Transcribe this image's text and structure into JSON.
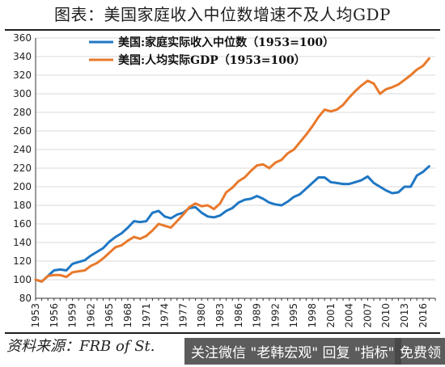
{
  "title": "图表：美国家庭收入中位数增速不及人均GDP",
  "source": "资料来源：FRB of St.",
  "watermark": {
    "left": "关注微信 \"老韩宏观\" 回复 \"指标\"",
    "right": "免费领"
  },
  "colors": {
    "blue": "#1f77c4",
    "orange": "#e8792b",
    "axis": "#333333",
    "grid": "#d9d9d9"
  },
  "chart_data": {
    "type": "line",
    "title": "",
    "xlabel": "",
    "ylabel": "",
    "ylim": [
      80,
      360
    ],
    "yticks": [
      80,
      100,
      120,
      140,
      160,
      180,
      200,
      220,
      240,
      260,
      280,
      300,
      320,
      340,
      360
    ],
    "xlim": [
      1953,
      2018
    ],
    "xticks": [
      1953,
      1956,
      1959,
      1962,
      1965,
      1968,
      1971,
      1974,
      1977,
      1980,
      1983,
      1986,
      1989,
      1992,
      1995,
      1998,
      2001,
      2004,
      2007,
      2010,
      2013,
      2016
    ],
    "grid": true,
    "legend_position": "top-left",
    "series": [
      {
        "name": "美国:家庭实际收入中位数（1953=100）",
        "color": "#1f77c4",
        "x": [
          1953,
          1954,
          1955,
          1956,
          1957,
          1958,
          1959,
          1960,
          1961,
          1962,
          1963,
          1964,
          1965,
          1966,
          1967,
          1968,
          1969,
          1970,
          1971,
          1972,
          1973,
          1974,
          1975,
          1976,
          1977,
          1978,
          1979,
          1980,
          1981,
          1982,
          1983,
          1984,
          1985,
          1986,
          1987,
          1988,
          1989,
          1990,
          1991,
          1992,
          1993,
          1994,
          1995,
          1996,
          1997,
          1998,
          1999,
          2000,
          2001,
          2002,
          2003,
          2004,
          2005,
          2006,
          2007,
          2008,
          2009,
          2010,
          2011,
          2012,
          2013,
          2014,
          2015,
          2016,
          2017
        ],
        "values": [
          100,
          98,
          104,
          110,
          111,
          110,
          117,
          119,
          121,
          126,
          130,
          134,
          141,
          146,
          150,
          156,
          163,
          162,
          163,
          172,
          174,
          168,
          166,
          170,
          172,
          177,
          178,
          172,
          168,
          167,
          169,
          174,
          177,
          183,
          186,
          187,
          190,
          187,
          183,
          181,
          180,
          184,
          189,
          192,
          198,
          204,
          210,
          210,
          205,
          204,
          203,
          203,
          205,
          207,
          211,
          204,
          200,
          196,
          193,
          194,
          200,
          200,
          212,
          216,
          222
        ]
      },
      {
        "name": "美国:人均实际GDP（1953=100）",
        "color": "#e8792b",
        "x": [
          1953,
          1954,
          1955,
          1956,
          1957,
          1958,
          1959,
          1960,
          1961,
          1962,
          1963,
          1964,
          1965,
          1966,
          1967,
          1968,
          1969,
          1970,
          1971,
          1972,
          1973,
          1974,
          1975,
          1976,
          1977,
          1978,
          1979,
          1980,
          1981,
          1982,
          1983,
          1984,
          1985,
          1986,
          1987,
          1988,
          1989,
          1990,
          1991,
          1992,
          1993,
          1994,
          1995,
          1996,
          1997,
          1998,
          1999,
          2000,
          2001,
          2002,
          2003,
          2004,
          2005,
          2006,
          2007,
          2008,
          2009,
          2010,
          2011,
          2012,
          2013,
          2014,
          2015,
          2016,
          2017
        ],
        "values": [
          100,
          98,
          104,
          105,
          105,
          103,
          108,
          109,
          110,
          115,
          118,
          123,
          129,
          135,
          137,
          142,
          146,
          144,
          147,
          153,
          160,
          158,
          156,
          163,
          170,
          178,
          182,
          179,
          180,
          176,
          182,
          194,
          199,
          206,
          210,
          217,
          223,
          224,
          220,
          226,
          229,
          236,
          240,
          248,
          256,
          265,
          275,
          283,
          281,
          283,
          288,
          296,
          303,
          309,
          314,
          311,
          300,
          305,
          307,
          310,
          315,
          320,
          326,
          330,
          338
        ]
      }
    ]
  }
}
